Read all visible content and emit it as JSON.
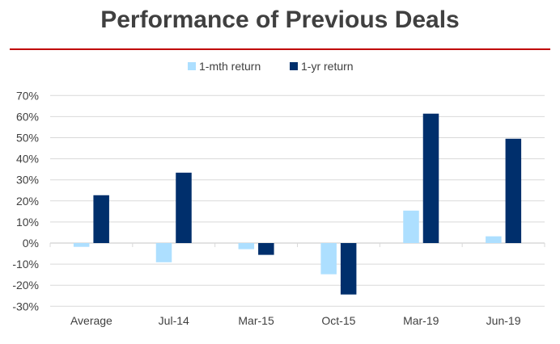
{
  "chart_data": {
    "type": "bar",
    "title": "Performance of Previous Deals",
    "categories": [
      "Average",
      "Jul-14",
      "Mar-15",
      "Oct-15",
      "Mar-19",
      "Jun-19"
    ],
    "series": [
      {
        "name": "1-mth return",
        "color": "#addfff",
        "values": [
          -1.8,
          -9.1,
          -2.9,
          -14.8,
          15.4,
          3.2
        ]
      },
      {
        "name": "1-yr return",
        "color": "#002f6c",
        "values": [
          22.7,
          33.4,
          -5.6,
          -24.4,
          61.4,
          49.5
        ]
      }
    ],
    "ylim": [
      -30,
      70
    ],
    "yticks": [
      70,
      60,
      50,
      40,
      30,
      20,
      10,
      0,
      -10,
      -20,
      -30
    ],
    "ytick_format": "percent",
    "grid": true,
    "legend": "top",
    "title_rule_color": "#c00000"
  }
}
